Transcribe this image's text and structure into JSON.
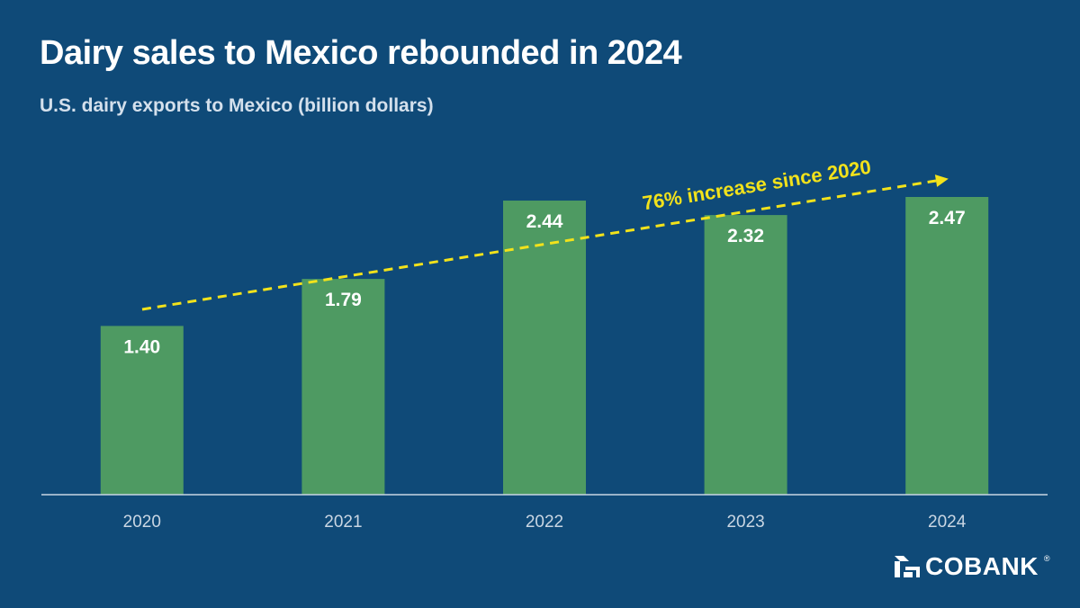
{
  "header": {
    "title": "Dairy sales to Mexico rebounded in 2024",
    "subtitle": "U.S. dairy exports to Mexico (billion dollars)"
  },
  "brand": {
    "name": "COBANK",
    "trademark": "®"
  },
  "colors": {
    "background": "#0f4a78",
    "bar": "#4e9a62",
    "trend": "#f2e21b",
    "axis": "#c9d6e3",
    "label": "#ffffff"
  },
  "chart_data": {
    "type": "bar",
    "title": "Dairy sales to Mexico rebounded in 2024",
    "subtitle": "U.S. dairy exports to Mexico (billion dollars)",
    "categories": [
      "2020",
      "2021",
      "2022",
      "2023",
      "2024"
    ],
    "values": [
      1.4,
      1.79,
      2.44,
      2.32,
      2.47
    ],
    "value_labels": [
      "1.40",
      "1.79",
      "2.44",
      "2.32",
      "2.47"
    ],
    "ylim": [
      0,
      2.47
    ],
    "grid": false,
    "xlabel": "",
    "ylabel": "",
    "annotation": {
      "text": "76% increase since 2020",
      "type": "dashed-arrow-trend",
      "from_category": "2020",
      "to_category": "2024"
    }
  }
}
